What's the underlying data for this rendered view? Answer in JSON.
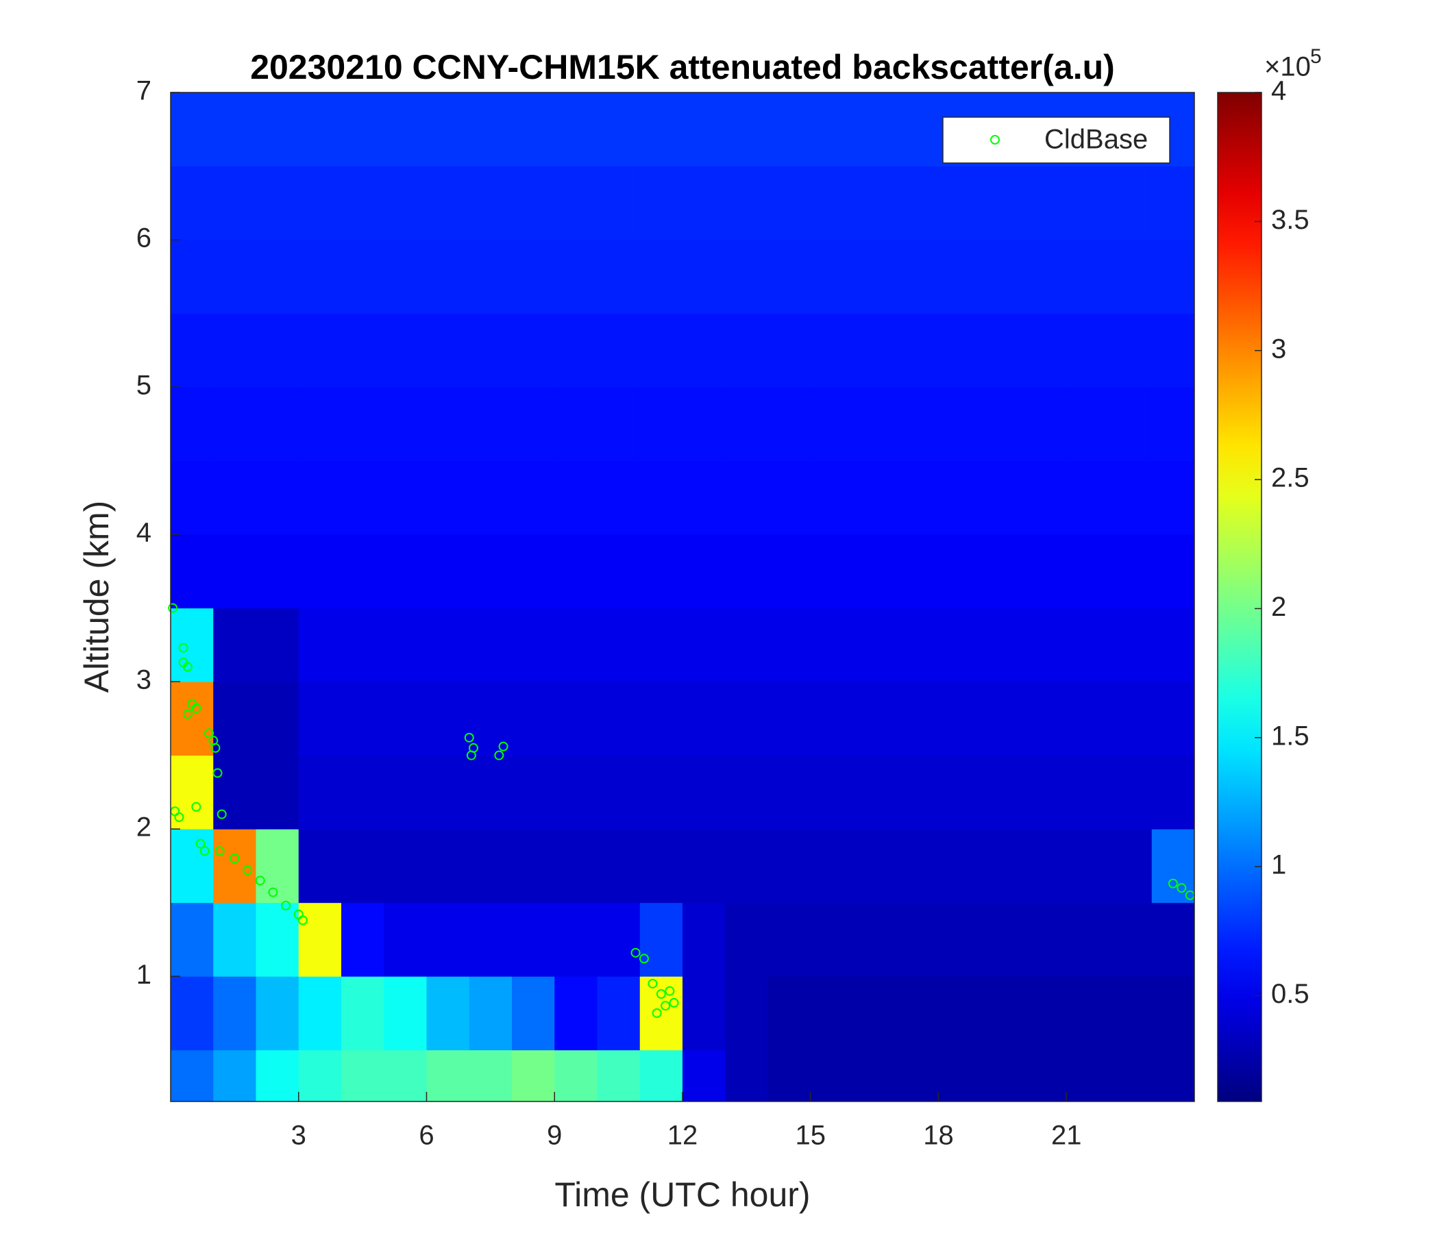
{
  "chart_data": {
    "type": "heatmap",
    "title": "20230210 CCNY-CHM15K attenuated backscatter(a.u)",
    "x_label": "Time (UTC hour)",
    "y_label": "Altitude (km)",
    "colorbar_multiplier": "×10",
    "colorbar_exponent": "5",
    "colormap": "jet",
    "xlim": [
      0,
      24
    ],
    "ylim": [
      0.15,
      7
    ],
    "clim": [
      0.09,
      4
    ],
    "xticks": [
      3,
      6,
      9,
      12,
      15,
      18,
      21
    ],
    "yticks": [
      1,
      2,
      3,
      4,
      5,
      6,
      7
    ],
    "cticks": [
      0.5,
      1,
      1.5,
      2,
      2.5,
      3,
      3.5,
      4
    ],
    "grid": false,
    "x_edges": [
      0,
      1,
      2,
      3,
      4,
      5,
      6,
      7,
      8,
      9,
      10,
      11,
      12,
      13,
      14,
      15,
      16,
      17,
      18,
      19,
      20,
      21,
      22,
      23,
      24
    ],
    "y_edges": [
      0.15,
      0.5,
      1,
      1.5,
      2,
      2.5,
      3,
      3.5,
      4,
      4.5,
      5,
      5.5,
      6,
      6.5,
      7
    ],
    "z": [
      [
        1.0,
        1.2,
        1.6,
        1.7,
        1.8,
        1.8,
        1.9,
        1.9,
        2.0,
        1.9,
        1.8,
        1.7,
        0.5,
        0.3,
        0.25,
        0.25,
        0.25,
        0.25,
        0.25,
        0.25,
        0.25,
        0.25,
        0.25,
        0.25
      ],
      [
        0.8,
        1.0,
        1.3,
        1.5,
        1.7,
        1.6,
        1.3,
        1.2,
        1.0,
        0.6,
        0.7,
        2.5,
        0.4,
        0.3,
        0.25,
        0.25,
        0.25,
        0.25,
        0.25,
        0.25,
        0.25,
        0.25,
        0.25,
        0.25
      ],
      [
        1.0,
        1.4,
        1.6,
        2.5,
        0.6,
        0.5,
        0.5,
        0.5,
        0.5,
        0.5,
        0.5,
        0.8,
        0.4,
        0.3,
        0.3,
        0.3,
        0.3,
        0.3,
        0.3,
        0.3,
        0.3,
        0.3,
        0.3,
        0.3
      ],
      [
        1.5,
        3.0,
        2.0,
        0.35,
        0.35,
        0.35,
        0.35,
        0.35,
        0.35,
        0.35,
        0.35,
        0.35,
        0.35,
        0.35,
        0.35,
        0.35,
        0.35,
        0.35,
        0.35,
        0.35,
        0.35,
        0.35,
        0.35,
        1.0
      ],
      [
        2.5,
        0.3,
        0.3,
        0.4,
        0.4,
        0.4,
        0.4,
        0.4,
        0.4,
        0.4,
        0.4,
        0.4,
        0.4,
        0.4,
        0.4,
        0.4,
        0.4,
        0.4,
        0.4,
        0.4,
        0.4,
        0.4,
        0.4,
        0.4
      ],
      [
        3.0,
        0.3,
        0.3,
        0.45,
        0.45,
        0.45,
        0.45,
        0.45,
        0.45,
        0.45,
        0.45,
        0.45,
        0.45,
        0.45,
        0.45,
        0.45,
        0.45,
        0.45,
        0.45,
        0.45,
        0.45,
        0.45,
        0.45,
        0.45
      ],
      [
        1.5,
        0.35,
        0.35,
        0.5,
        0.5,
        0.5,
        0.5,
        0.5,
        0.5,
        0.5,
        0.5,
        0.5,
        0.5,
        0.5,
        0.5,
        0.5,
        0.5,
        0.5,
        0.5,
        0.5,
        0.5,
        0.5,
        0.5,
        0.5
      ],
      [
        0.55,
        0.55,
        0.55,
        0.55,
        0.55,
        0.55,
        0.55,
        0.55,
        0.55,
        0.55,
        0.55,
        0.55,
        0.55,
        0.55,
        0.55,
        0.55,
        0.55,
        0.55,
        0.55,
        0.55,
        0.55,
        0.55,
        0.55,
        0.55
      ],
      [
        0.6,
        0.6,
        0.6,
        0.6,
        0.6,
        0.6,
        0.6,
        0.6,
        0.6,
        0.6,
        0.6,
        0.6,
        0.6,
        0.6,
        0.6,
        0.6,
        0.6,
        0.6,
        0.6,
        0.6,
        0.6,
        0.6,
        0.6,
        0.6
      ],
      [
        0.62,
        0.62,
        0.62,
        0.62,
        0.62,
        0.62,
        0.62,
        0.62,
        0.62,
        0.62,
        0.62,
        0.62,
        0.62,
        0.62,
        0.62,
        0.62,
        0.62,
        0.62,
        0.62,
        0.62,
        0.62,
        0.62,
        0.62,
        0.62
      ],
      [
        0.65,
        0.65,
        0.65,
        0.65,
        0.65,
        0.65,
        0.65,
        0.65,
        0.65,
        0.65,
        0.65,
        0.65,
        0.65,
        0.65,
        0.65,
        0.65,
        0.65,
        0.65,
        0.65,
        0.65,
        0.65,
        0.65,
        0.65,
        0.65
      ],
      [
        0.7,
        0.7,
        0.7,
        0.7,
        0.7,
        0.7,
        0.7,
        0.7,
        0.7,
        0.7,
        0.7,
        0.7,
        0.7,
        0.7,
        0.7,
        0.7,
        0.7,
        0.7,
        0.7,
        0.7,
        0.7,
        0.7,
        0.7,
        0.7
      ],
      [
        0.72,
        0.72,
        0.72,
        0.72,
        0.72,
        0.72,
        0.72,
        0.72,
        0.72,
        0.72,
        0.72,
        0.72,
        0.72,
        0.72,
        0.72,
        0.72,
        0.72,
        0.72,
        0.72,
        0.72,
        0.72,
        0.72,
        0.72,
        0.72
      ],
      [
        0.78,
        0.78,
        0.78,
        0.78,
        0.78,
        0.78,
        0.78,
        0.78,
        0.78,
        0.78,
        0.78,
        0.78,
        0.78,
        0.78,
        0.78,
        0.78,
        0.78,
        0.78,
        0.78,
        0.78,
        0.78,
        0.78,
        0.78,
        0.78
      ]
    ],
    "scatter": {
      "name": "CldBase",
      "color": "#00ff00",
      "x": [
        0.05,
        0.3,
        0.3,
        0.4,
        0.5,
        0.6,
        0.4,
        0.9,
        1.0,
        1.05,
        1.1,
        0.1,
        0.2,
        0.6,
        0.7,
        0.8,
        1.2,
        1.15,
        1.5,
        1.8,
        2.1,
        2.4,
        2.7,
        3.0,
        3.1,
        7.0,
        7.1,
        7.05,
        7.7,
        7.8,
        10.9,
        11.1,
        11.3,
        11.5,
        11.6,
        11.4,
        11.7,
        11.8,
        23.5,
        23.7,
        23.9
      ],
      "y": [
        3.5,
        3.23,
        3.13,
        3.1,
        2.85,
        2.82,
        2.78,
        2.65,
        2.6,
        2.55,
        2.38,
        2.12,
        2.08,
        2.15,
        1.9,
        1.85,
        2.1,
        1.85,
        1.8,
        1.72,
        1.65,
        1.57,
        1.48,
        1.42,
        1.38,
        2.62,
        2.55,
        2.5,
        2.5,
        2.56,
        1.16,
        1.12,
        0.95,
        0.88,
        0.8,
        0.75,
        0.9,
        0.82,
        1.63,
        1.6,
        1.55
      ]
    },
    "legend": "upper right"
  }
}
